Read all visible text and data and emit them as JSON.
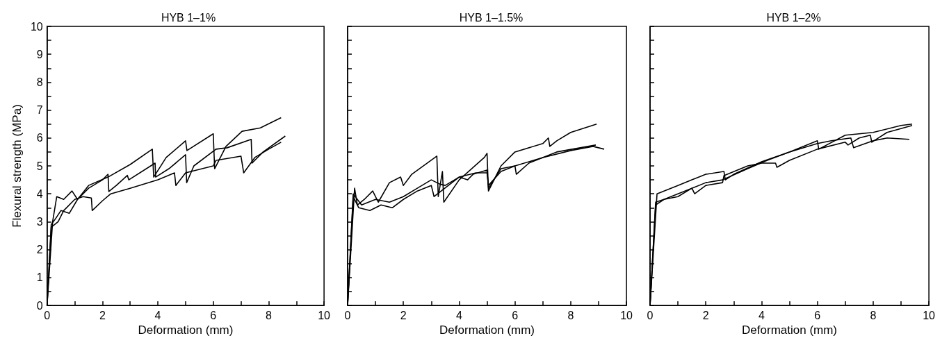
{
  "chart_data": [
    {
      "type": "line",
      "title": "HYB 1–1%",
      "xlabel": "Deformation (mm)",
      "ylabel": "Flexural strength (MPa)",
      "xlim": [
        0,
        10
      ],
      "ylim": [
        0,
        10
      ],
      "xticks": [
        0,
        {
          "value": 1,
          "label": null
        },
        2,
        {
          "value": 3,
          "label": null
        },
        4,
        {
          "value": 5,
          "label": null
        },
        6,
        {
          "value": 7,
          "label": null
        },
        8,
        {
          "value": 9,
          "label": null
        },
        10
      ],
      "yticks": [
        0,
        {
          "value": 0.5,
          "label": null
        },
        1,
        {
          "value": 1.5,
          "label": null
        },
        2,
        {
          "value": 2.5,
          "label": null
        },
        3,
        {
          "value": 3.5,
          "label": null
        },
        4,
        {
          "value": 4.5,
          "label": null
        },
        5,
        {
          "value": 5.5,
          "label": null
        },
        6,
        {
          "value": 6.5,
          "label": null
        },
        7,
        {
          "value": 7.5,
          "label": null
        },
        8,
        {
          "value": 8.5,
          "label": null
        },
        9,
        {
          "value": 9.5,
          "label": null
        },
        10
      ],
      "grid": false,
      "marker": "none",
      "line_style": "solid",
      "series": [
        {
          "color": "#000000",
          "x": [
            0,
            0.2,
            0.35,
            0.6,
            0.9,
            1.1,
            1.5,
            2.2,
            3,
            3.8,
            3.85,
            4.3,
            5.0,
            5.05,
            6.0,
            6.05,
            6.46,
            7.04,
            7.7,
            8.45
          ],
          "values": [
            0,
            3.0,
            3.9,
            3.8,
            4.1,
            3.8,
            4.3,
            4.6,
            5.05,
            5.6,
            4.6,
            5.3,
            5.9,
            5.55,
            6.15,
            4.9,
            5.7,
            6.24,
            6.36,
            6.73
          ]
        },
        {
          "color": "#000000",
          "x": [
            0,
            0.15,
            0.3,
            0.5,
            0.8,
            1.1,
            1.5,
            2.0,
            2.2,
            2.23,
            2.5,
            2.9,
            2.95,
            3.9,
            3.92,
            4.4,
            5.0,
            5.04,
            5.3,
            6.1,
            6.5,
            7.37,
            7.4,
            7.8,
            8.6
          ],
          "values": [
            0,
            2.9,
            3.1,
            3.4,
            3.3,
            3.8,
            4.2,
            4.5,
            4.7,
            4.08,
            4.3,
            4.66,
            4.5,
            5.1,
            4.6,
            4.9,
            5.4,
            4.4,
            5.0,
            5.6,
            5.65,
            5.95,
            5.1,
            5.5,
            6.07
          ]
        },
        {
          "color": "#000000",
          "x": [
            0,
            0.15,
            0.4,
            0.6,
            1,
            1.3,
            1.6,
            1.63,
            2,
            2.3,
            3,
            4,
            4.6,
            4.65,
            5,
            6,
            6.1,
            7,
            7.1,
            7.5,
            8,
            8.45
          ],
          "values": [
            0,
            2.8,
            3.0,
            3.4,
            3.8,
            3.9,
            3.85,
            3.4,
            3.75,
            4.0,
            4.2,
            4.5,
            4.75,
            4.3,
            4.75,
            5.0,
            5.2,
            5.35,
            4.75,
            5.3,
            5.6,
            5.85
          ]
        }
      ]
    },
    {
      "type": "line",
      "title": "HYB 1–1.5%",
      "xlabel": "Deformation (mm)",
      "xlim": [
        0,
        10
      ],
      "ylim": [
        0,
        10
      ],
      "tick_labels": "x",
      "xticks": [
        0,
        {
          "value": 1,
          "label": null
        },
        2,
        {
          "value": 3,
          "label": null
        },
        4,
        {
          "value": 5,
          "label": null
        },
        6,
        {
          "value": 7,
          "label": null
        },
        8,
        {
          "value": 9,
          "label": null
        },
        10
      ],
      "yticks": [
        0,
        {
          "value": 0.5,
          "label": null
        },
        1,
        {
          "value": 1.5,
          "label": null
        },
        2,
        {
          "value": 2.5,
          "label": null
        },
        3,
        {
          "value": 3.5,
          "label": null
        },
        4,
        {
          "value": 4.5,
          "label": null
        },
        5,
        {
          "value": 5.5,
          "label": null
        },
        6,
        {
          "value": 6.5,
          "label": null
        },
        7,
        {
          "value": 7.5,
          "label": null
        },
        8,
        {
          "value": 8.5,
          "label": null
        },
        9,
        {
          "value": 9.5,
          "label": null
        },
        10
      ],
      "grid": false,
      "marker": "none",
      "line_style": "solid",
      "series": [
        {
          "color": "#000000",
          "x": [
            0,
            0.25,
            0.35,
            0.6,
            0.9,
            1.1,
            1.5,
            1.9,
            2.0,
            2.3,
            3.2,
            3.25,
            3.4,
            3.45,
            4,
            4.9,
            5.0,
            5.05,
            5.5,
            6,
            7,
            7.2,
            7.25,
            7.5,
            8,
            8.93
          ],
          "values": [
            0,
            4.2,
            3.6,
            3.8,
            4.1,
            3.7,
            4.4,
            4.6,
            4.3,
            4.7,
            5.35,
            3.9,
            4.8,
            3.7,
            4.5,
            5.3,
            5.45,
            4.1,
            5.0,
            5.5,
            5.8,
            6.0,
            5.7,
            5.9,
            6.2,
            6.5
          ]
        },
        {
          "color": "#000000",
          "x": [
            0,
            0.2,
            0.4,
            0.8,
            1.2,
            1.6,
            2,
            2.5,
            3.0,
            3.1,
            4,
            4.6,
            5,
            5.05,
            5.5,
            6,
            7,
            8,
            8.8,
            9.2
          ],
          "values": [
            0,
            3.9,
            3.5,
            3.4,
            3.6,
            3.5,
            3.8,
            4.1,
            4.3,
            3.9,
            4.6,
            4.75,
            4.75,
            4.3,
            4.8,
            5.0,
            5.3,
            5.55,
            5.7,
            5.6
          ]
        },
        {
          "color": "#000000",
          "x": [
            0,
            0.2,
            0.5,
            1,
            1.5,
            2,
            2.5,
            3.0,
            3.3,
            3.5,
            4,
            4.3,
            4.5,
            5,
            5.05,
            5.5,
            6,
            6.05,
            6.5,
            7.5,
            8.9
          ],
          "values": [
            0,
            4.0,
            3.6,
            3.8,
            3.7,
            3.9,
            4.2,
            4.5,
            4.35,
            4.3,
            4.6,
            4.5,
            4.7,
            4.85,
            4.2,
            4.9,
            5.0,
            4.7,
            5.1,
            5.5,
            5.75
          ]
        }
      ]
    },
    {
      "type": "line",
      "title": "HYB 1–2%",
      "xlabel": "Deformation (mm)",
      "xlim": [
        0,
        10
      ],
      "ylim": [
        0,
        10
      ],
      "tick_labels": "x",
      "xticks": [
        0,
        {
          "value": 1,
          "label": null
        },
        2,
        {
          "value": 3,
          "label": null
        },
        4,
        {
          "value": 5,
          "label": null
        },
        6,
        {
          "value": 7,
          "label": null
        },
        8,
        {
          "value": 9,
          "label": null
        },
        10
      ],
      "yticks": [
        0,
        {
          "value": 0.5,
          "label": null
        },
        1,
        {
          "value": 1.5,
          "label": null
        },
        2,
        {
          "value": 2.5,
          "label": null
        },
        3,
        {
          "value": 3.5,
          "label": null
        },
        4,
        {
          "value": 4.5,
          "label": null
        },
        5,
        {
          "value": 5.5,
          "label": null
        },
        6,
        {
          "value": 6.5,
          "label": null
        },
        7,
        {
          "value": 7.5,
          "label": null
        },
        8,
        {
          "value": 8.5,
          "label": null
        },
        9,
        {
          "value": 9.5,
          "label": null
        },
        10
      ],
      "grid": false,
      "marker": "none",
      "line_style": "solid",
      "series": [
        {
          "color": "#000000",
          "x": [
            0,
            0.25,
            0.5,
            1,
            1.5,
            2,
            2.65,
            2.7,
            3,
            4,
            5,
            6,
            6.05,
            7,
            8,
            9,
            9.4
          ],
          "values": [
            0,
            4.0,
            4.1,
            4.3,
            4.5,
            4.7,
            4.8,
            4.5,
            4.7,
            5.15,
            5.5,
            5.9,
            5.6,
            6.1,
            6.2,
            6.45,
            6.5
          ]
        },
        {
          "color": "#000000",
          "x": [
            0,
            0.2,
            0.5,
            1,
            1.5,
            1.6,
            2,
            2.6,
            2.65,
            3.5,
            4,
            4.5,
            4.55,
            5,
            6,
            7,
            7.1,
            7.5,
            7.9,
            7.95,
            8.5,
            9.4
          ],
          "values": [
            0,
            3.7,
            3.8,
            4.0,
            4.2,
            4.0,
            4.3,
            4.4,
            4.65,
            5.0,
            5.1,
            5.1,
            4.95,
            5.2,
            5.6,
            5.85,
            5.75,
            6.0,
            6.1,
            5.85,
            6.2,
            6.45
          ]
        },
        {
          "color": "#000000",
          "x": [
            0,
            0.2,
            0.5,
            1,
            1.5,
            2,
            2.6,
            3.5,
            4.2,
            5,
            6,
            6.5,
            7.2,
            7.3,
            8,
            8.5,
            9.3
          ],
          "values": [
            0,
            3.6,
            3.8,
            3.9,
            4.2,
            4.4,
            4.5,
            4.9,
            5.2,
            5.5,
            5.8,
            5.9,
            6.0,
            5.65,
            5.9,
            6.0,
            5.95
          ]
        }
      ]
    }
  ]
}
